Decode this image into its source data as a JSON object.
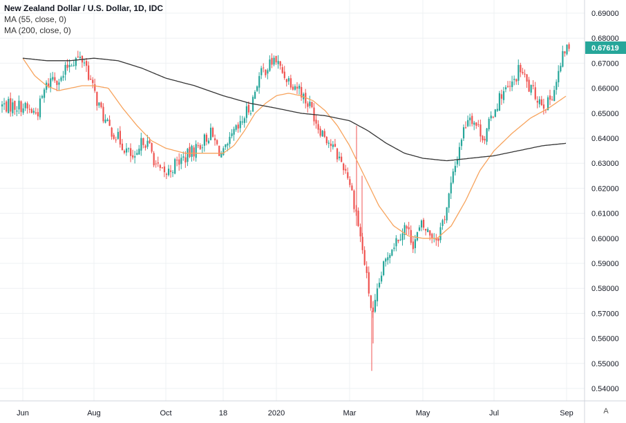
{
  "legend": {
    "title": "New Zealand Dollar / U.S. Dollar, 1D, IDC",
    "ma55": "MA (55, close, 0)",
    "ma200": "MA (200, close, 0)"
  },
  "auto_label": "A",
  "colors": {
    "up": "#26a69a",
    "down": "#ef5350",
    "ma55": "#f7a35c",
    "ma200": "#333333",
    "grid": "#eef0f3",
    "price_tag": "#26a69a"
  },
  "chart_data": {
    "type": "candlestick",
    "ylim": [
      0.54,
      0.69
    ],
    "y_ticks": [
      "0.69000",
      "0.68000",
      "0.67000",
      "0.66000",
      "0.65000",
      "0.64000",
      "0.63000",
      "0.62000",
      "0.61000",
      "0.60000",
      "0.59000",
      "0.58000",
      "0.57000",
      "0.56000",
      "0.55000",
      "0.54000"
    ],
    "x_ticks": [
      "Jun",
      "Aug",
      "Oct",
      "18",
      "2020",
      "Mar",
      "May",
      "Jul",
      "Sep"
    ],
    "last_price": "0.67619",
    "close_path": [
      [
        "Jun",
        0.653
      ],
      [
        "",
        0.651
      ],
      [
        "",
        0.65
      ],
      [
        "",
        0.66
      ],
      [
        "",
        0.665
      ],
      [
        "",
        0.663
      ],
      [
        "",
        0.67
      ],
      [
        "",
        0.672
      ],
      [
        "",
        0.671
      ],
      [
        "Aug",
        0.66
      ],
      [
        "",
        0.652
      ],
      [
        "",
        0.645
      ],
      [
        "",
        0.642
      ],
      [
        "",
        0.638
      ],
      [
        "",
        0.634
      ],
      [
        "",
        0.63
      ],
      [
        "",
        0.64
      ],
      [
        "",
        0.636
      ],
      [
        "",
        0.628
      ],
      [
        "Oct",
        0.625
      ],
      [
        "",
        0.63
      ],
      [
        "",
        0.633
      ],
      [
        "",
        0.637
      ],
      [
        "",
        0.642
      ],
      [
        "18",
        0.633
      ],
      [
        "",
        0.636
      ],
      [
        "",
        0.642
      ],
      [
        "",
        0.644
      ],
      [
        "",
        0.65
      ],
      [
        "",
        0.653
      ],
      [
        "",
        0.663
      ],
      [
        "",
        0.667
      ],
      [
        "",
        0.669
      ],
      [
        "2020",
        0.672
      ],
      [
        "",
        0.667
      ],
      [
        "",
        0.664
      ],
      [
        "",
        0.662
      ],
      [
        "",
        0.66
      ],
      [
        "",
        0.655
      ],
      [
        "",
        0.652
      ],
      [
        "",
        0.645
      ],
      [
        "",
        0.642
      ],
      [
        "",
        0.638
      ],
      [
        "",
        0.634
      ],
      [
        "",
        0.63
      ],
      [
        "Mar",
        0.625
      ],
      [
        "",
        0.61
      ],
      [
        "",
        0.59
      ],
      [
        "",
        0.568
      ],
      [
        "",
        0.585
      ],
      [
        "",
        0.595
      ],
      [
        "",
        0.6
      ],
      [
        "",
        0.605
      ],
      [
        "",
        0.598
      ],
      [
        "May",
        0.605
      ],
      [
        "",
        0.602
      ],
      [
        "",
        0.6
      ],
      [
        "",
        0.61
      ],
      [
        "",
        0.625
      ],
      [
        "",
        0.64
      ],
      [
        "",
        0.65
      ],
      [
        "",
        0.645
      ],
      [
        "",
        0.64
      ],
      [
        "Jul",
        0.65
      ],
      [
        "",
        0.658
      ],
      [
        "",
        0.66
      ],
      [
        "",
        0.668
      ],
      [
        "",
        0.66
      ],
      [
        "",
        0.656
      ],
      [
        "",
        0.653
      ],
      [
        "",
        0.662
      ],
      [
        "Sep",
        0.676
      ]
    ],
    "ma55_path": [
      [
        "Jun",
        0.672
      ],
      [
        "",
        0.665
      ],
      [
        "",
        0.661
      ],
      [
        "",
        0.659
      ],
      [
        "",
        0.66
      ],
      [
        "",
        0.661
      ],
      [
        "Aug",
        0.661
      ],
      [
        "",
        0.66
      ],
      [
        "",
        0.652
      ],
      [
        "",
        0.645
      ],
      [
        "",
        0.639
      ],
      [
        "Oct",
        0.636
      ],
      [
        "",
        0.634
      ],
      [
        "",
        0.634
      ],
      [
        "18",
        0.634
      ],
      [
        "",
        0.637
      ],
      [
        "",
        0.643
      ],
      [
        "",
        0.65
      ],
      [
        "",
        0.654
      ],
      [
        "2020",
        0.657
      ],
      [
        "",
        0.658
      ],
      [
        "",
        0.657
      ],
      [
        "",
        0.655
      ],
      [
        "",
        0.651
      ],
      [
        "",
        0.645
      ],
      [
        "Mar",
        0.637
      ],
      [
        "",
        0.625
      ],
      [
        "",
        0.613
      ],
      [
        "",
        0.605
      ],
      [
        "",
        0.601
      ],
      [
        "May",
        0.6
      ],
      [
        "",
        0.6
      ],
      [
        "",
        0.605
      ],
      [
        "",
        0.615
      ],
      [
        "",
        0.627
      ],
      [
        "Jul",
        0.635
      ],
      [
        "",
        0.642
      ],
      [
        "",
        0.648
      ],
      [
        "",
        0.652
      ],
      [
        "Sep",
        0.657
      ]
    ],
    "ma200_path": [
      [
        "Jun",
        0.672
      ],
      [
        "",
        0.671
      ],
      [
        "",
        0.671
      ],
      [
        "Aug",
        0.672
      ],
      [
        "",
        0.671
      ],
      [
        "",
        0.668
      ],
      [
        "Oct",
        0.664
      ],
      [
        "",
        0.661
      ],
      [
        "18",
        0.657
      ],
      [
        "",
        0.654
      ],
      [
        "2020",
        0.652
      ],
      [
        "",
        0.65
      ],
      [
        "",
        0.649
      ],
      [
        "Mar",
        0.647
      ],
      [
        "",
        0.643
      ],
      [
        "",
        0.638
      ],
      [
        "",
        0.634
      ],
      [
        "May",
        0.632
      ],
      [
        "",
        0.631
      ],
      [
        "",
        0.632
      ],
      [
        "Jul",
        0.633
      ],
      [
        "",
        0.635
      ],
      [
        "",
        0.637
      ],
      [
        "Sep",
        0.638
      ]
    ]
  }
}
